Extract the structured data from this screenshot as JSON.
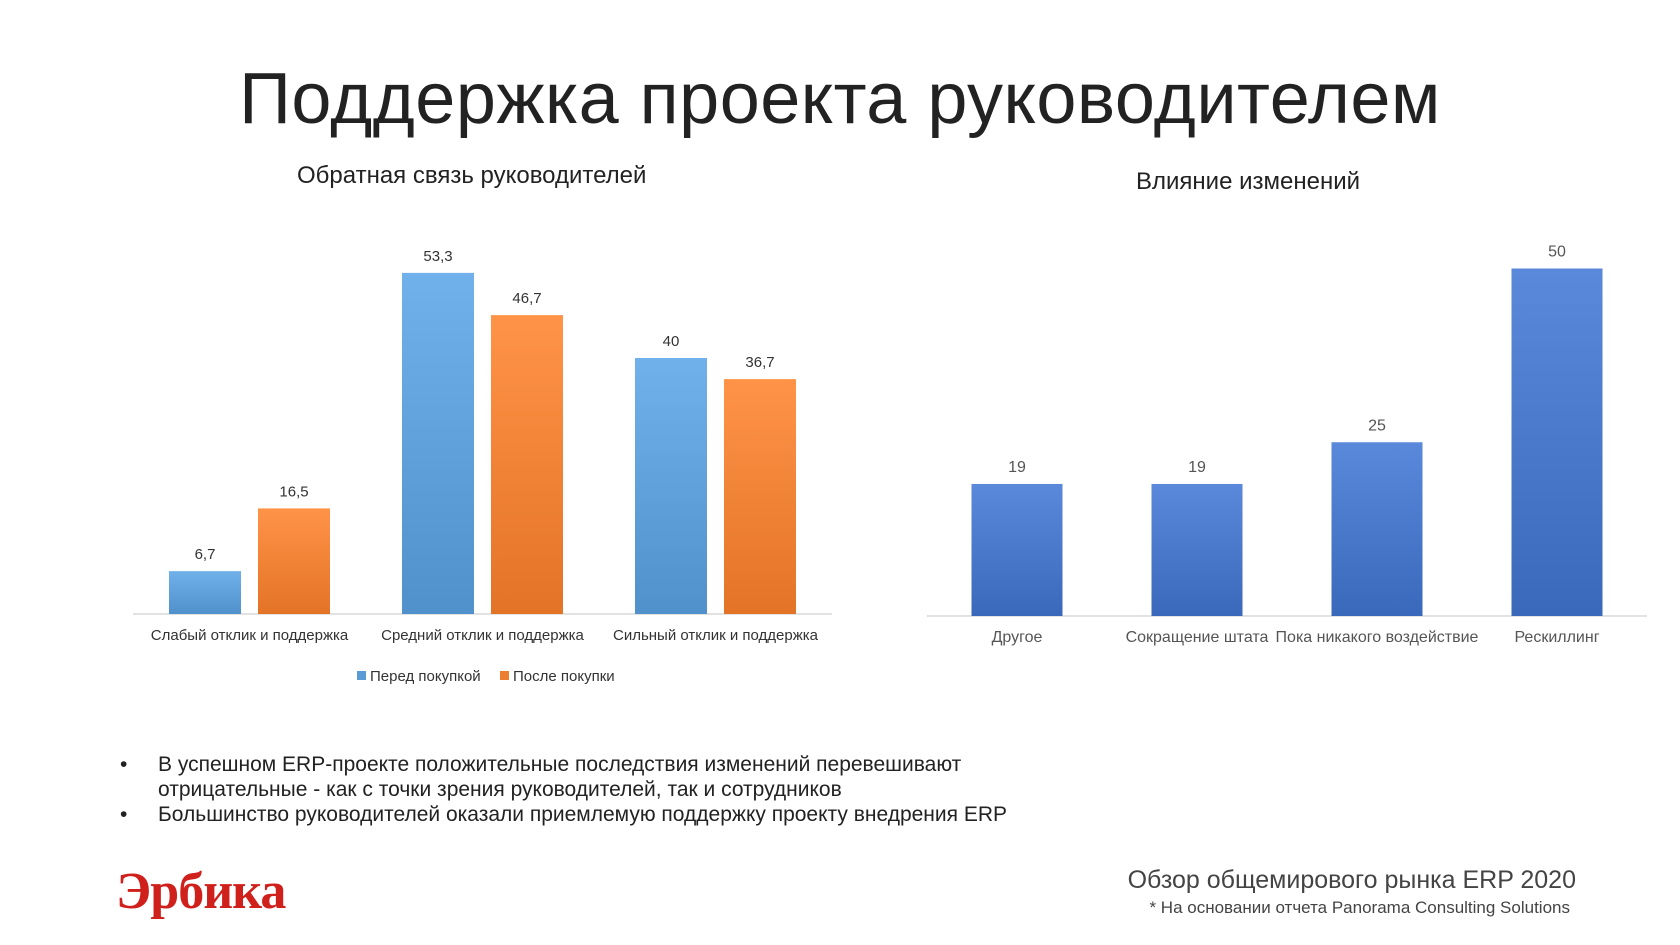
{
  "page": {
    "title": "Поддержка проекта руководителем"
  },
  "chart_data": [
    {
      "type": "bar",
      "title": "Обратная связь руководителей",
      "categories": [
        "Слабый отклик и поддержка",
        "Средний отклик и поддержка",
        "Сильный отклик и поддержка"
      ],
      "series": [
        {
          "name": "Перед покупкой",
          "values": [
            6.7,
            53.3,
            40
          ],
          "labels": [
            "6,7",
            "53,3",
            "40"
          ],
          "color": "#5b9bd5"
        },
        {
          "name": "После покупки",
          "values": [
            16.5,
            46.7,
            36.7
          ],
          "labels": [
            "16,5",
            "46,7",
            "36,7"
          ],
          "color": "#ed7d31"
        }
      ],
      "legend": "bottom",
      "grid": false
    },
    {
      "type": "bar",
      "title": "Влияние изменений",
      "categories": [
        "Другое",
        "Сокращение штата",
        "Пока никакого воздействие",
        "Рескиллинг"
      ],
      "values": [
        19,
        19,
        25,
        50
      ],
      "labels": [
        "19",
        "19",
        "25",
        "50"
      ],
      "color": "#4472c4",
      "grid": false
    }
  ],
  "bullets": [
    "В успешном ERP-проекте положительные последствия изменений перевешивают отрицательные - как с точки зрения руководителей, так и сотрудников",
    "Большинство руководителей оказали приемлемую поддержку проекту внедрения ERP"
  ],
  "bullet_marker": "•",
  "footer": {
    "logo": "Эрбика",
    "source_title": "Обзор общемирового рынка ERP 2020",
    "source_note": "* На основании отчета Panorama Consulting Solutions"
  }
}
